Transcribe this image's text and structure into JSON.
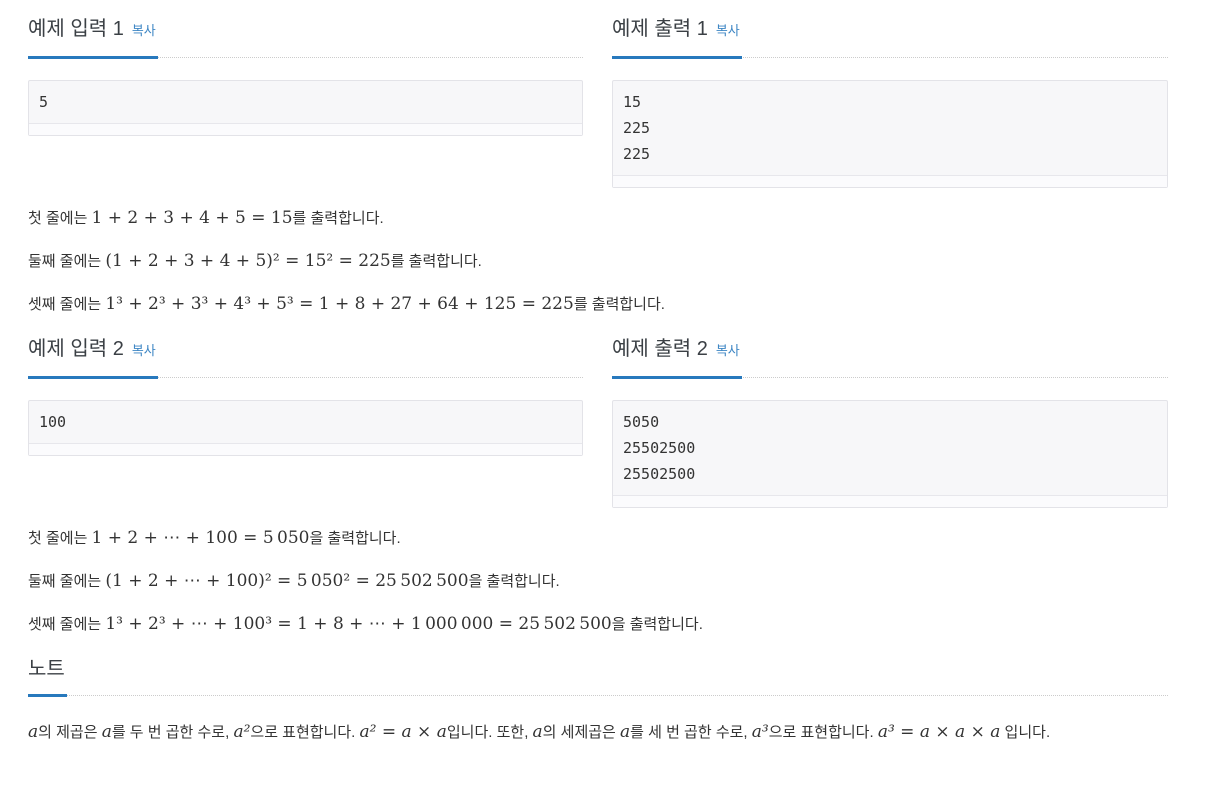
{
  "colors": {
    "accent_underline": "#2879bd",
    "link_blue": "#3d86c4",
    "heading_text": "#3b4045",
    "code_block_bg": "#f7f7f9",
    "code_block_border": "#e3e3e8",
    "body_text": "#333333"
  },
  "sections": [
    {
      "input": {
        "title": "예제 입력 1",
        "copy_label": "복사",
        "content": "5"
      },
      "output": {
        "title": "예제 출력 1",
        "copy_label": "복사",
        "content": "15\n225\n225"
      },
      "explanations": [
        [
          {
            "k": "kr",
            "t": "첫 줄에는 "
          },
          {
            "k": "m",
            "t": "1 + 2 + 3 + 4 + 5 = 15"
          },
          {
            "k": "kr",
            "t": "를 출력합니다."
          }
        ],
        [
          {
            "k": "kr",
            "t": "둘째 줄에는 "
          },
          {
            "k": "m",
            "t": "(1 + 2 + 3 + 4 + 5)² = 15² = 225"
          },
          {
            "k": "kr",
            "t": "를 출력합니다."
          }
        ],
        [
          {
            "k": "kr",
            "t": "셋째 줄에는 "
          },
          {
            "k": "m",
            "t": "1³ + 2³ + 3³ + 4³ + 5³ = 1 + 8 + 27 + 64 + 125 = 225"
          },
          {
            "k": "kr",
            "t": "를 출력합니다."
          }
        ]
      ]
    },
    {
      "input": {
        "title": "예제 입력 2",
        "copy_label": "복사",
        "content": "100"
      },
      "output": {
        "title": "예제 출력 2",
        "copy_label": "복사",
        "content": "5050\n25502500\n25502500"
      },
      "explanations": [
        [
          {
            "k": "kr",
            "t": "첫 줄에는 "
          },
          {
            "k": "m",
            "t": "1 + 2 + ⋯ + 100 = 5 050"
          },
          {
            "k": "kr",
            "t": "을 출력합니다."
          }
        ],
        [
          {
            "k": "kr",
            "t": "둘째 줄에는 "
          },
          {
            "k": "m",
            "t": "(1 + 2 + ⋯ + 100)² = 5 050² = 25 502 500"
          },
          {
            "k": "kr",
            "t": "을 출력합니다."
          }
        ],
        [
          {
            "k": "kr",
            "t": "셋째 줄에는 "
          },
          {
            "k": "m",
            "t": "1³ + 2³ + ⋯ + 100³ = 1 + 8 + ⋯ + 1 000 000 = 25 502 500"
          },
          {
            "k": "kr",
            "t": "을 출력합니다."
          }
        ]
      ]
    }
  ],
  "note": {
    "title": "노트",
    "paragraph": [
      {
        "k": "v",
        "t": "a"
      },
      {
        "k": "kr",
        "t": "의 제곱은 "
      },
      {
        "k": "v",
        "t": "a"
      },
      {
        "k": "kr",
        "t": "를 두 번 곱한 수로, "
      },
      {
        "k": "v",
        "t": "a²"
      },
      {
        "k": "kr",
        "t": "으로 표현합니다. "
      },
      {
        "k": "v",
        "t": "a²"
      },
      {
        "k": "m",
        "t": " = "
      },
      {
        "k": "v",
        "t": "a"
      },
      {
        "k": "m",
        "t": " × "
      },
      {
        "k": "v",
        "t": "a"
      },
      {
        "k": "kr",
        "t": "입니다. 또한, "
      },
      {
        "k": "v",
        "t": "a"
      },
      {
        "k": "kr",
        "t": "의 세제곱은 "
      },
      {
        "k": "v",
        "t": "a"
      },
      {
        "k": "kr",
        "t": "를 세 번 곱한 수로, "
      },
      {
        "k": "v",
        "t": "a³"
      },
      {
        "k": "kr",
        "t": "으로 표현합니다. "
      },
      {
        "k": "v",
        "t": "a³"
      },
      {
        "k": "m",
        "t": " = "
      },
      {
        "k": "v",
        "t": "a"
      },
      {
        "k": "m",
        "t": " × "
      },
      {
        "k": "v",
        "t": "a"
      },
      {
        "k": "m",
        "t": " × "
      },
      {
        "k": "v",
        "t": "a"
      },
      {
        "k": "kr",
        "t": " 입니다."
      }
    ]
  }
}
